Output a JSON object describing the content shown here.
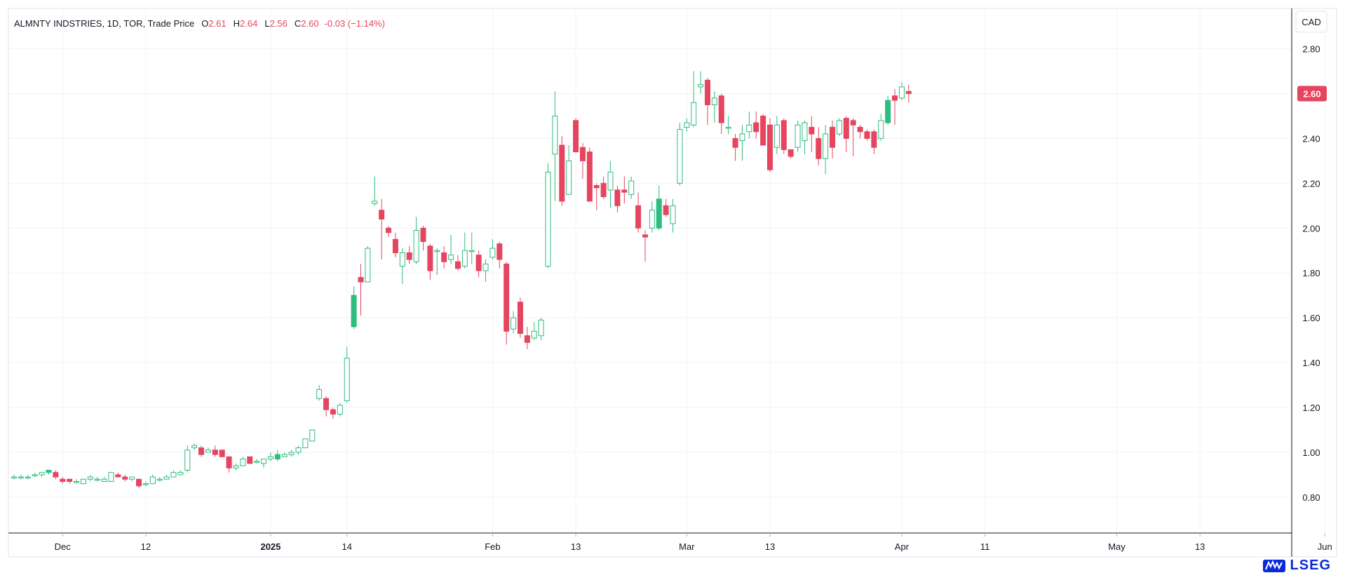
{
  "header": {
    "symbol": "ALMNTY INDSTRIES, 1D, TOR, Trade Price",
    "o_label": "O",
    "o_value": "2.61",
    "h_label": "H",
    "h_value": "2.64",
    "l_label": "L",
    "l_value": "2.56",
    "c_label": "C",
    "c_value": "2.60",
    "change": "-0.03 (−1.14%)"
  },
  "currency": "CAD",
  "last_price_label": "2.60",
  "logo_text": "LSEG",
  "colors": {
    "up": "#26a69a",
    "up_fill": "#2dbd7e",
    "down": "#e5455f",
    "grid": "#f0f3fa",
    "axis_text": "#131722",
    "header_red": "#e5455f"
  },
  "chart_data": {
    "type": "candlestick",
    "y_ticks": [
      "0.80",
      "1.00",
      "1.20",
      "1.40",
      "1.60",
      "1.80",
      "2.00",
      "2.20",
      "2.40",
      "2.60",
      "2.80"
    ],
    "ylim": [
      0.64,
      2.98
    ],
    "x_ticks": [
      {
        "i": 7,
        "label": "Dec",
        "bold": false
      },
      {
        "i": 19,
        "label": "12",
        "bold": false
      },
      {
        "i": 37,
        "label": "2025",
        "bold": true
      },
      {
        "i": 48,
        "label": "14",
        "bold": false
      },
      {
        "i": 69,
        "label": "Feb",
        "bold": false
      },
      {
        "i": 81,
        "label": "13",
        "bold": false
      },
      {
        "i": 97,
        "label": "Mar",
        "bold": false
      },
      {
        "i": 109,
        "label": "13",
        "bold": false
      },
      {
        "i": 128,
        "label": "Apr",
        "bold": false
      },
      {
        "i": 140,
        "label": "11",
        "bold": false
      },
      {
        "i": 159,
        "label": "May",
        "bold": false
      },
      {
        "i": 171,
        "label": "13",
        "bold": false
      },
      {
        "i": 189,
        "label": "Jun",
        "bold": false
      }
    ],
    "candles": [
      [
        0.89,
        0.9,
        0.88,
        0.89
      ],
      [
        0.89,
        0.9,
        0.88,
        0.89
      ],
      [
        0.89,
        0.9,
        0.88,
        0.89
      ],
      [
        0.9,
        0.91,
        0.89,
        0.9
      ],
      [
        0.9,
        0.91,
        0.89,
        0.91
      ],
      [
        0.91,
        0.92,
        0.9,
        0.92
      ],
      [
        0.91,
        0.92,
        0.88,
        0.89
      ],
      [
        0.88,
        0.89,
        0.86,
        0.87
      ],
      [
        0.88,
        0.88,
        0.86,
        0.87
      ],
      [
        0.87,
        0.88,
        0.86,
        0.87
      ],
      [
        0.86,
        0.88,
        0.86,
        0.88
      ],
      [
        0.88,
        0.9,
        0.87,
        0.89
      ],
      [
        0.88,
        0.89,
        0.87,
        0.88
      ],
      [
        0.87,
        0.89,
        0.87,
        0.88
      ],
      [
        0.87,
        0.91,
        0.87,
        0.91
      ],
      [
        0.9,
        0.91,
        0.89,
        0.89
      ],
      [
        0.89,
        0.9,
        0.87,
        0.88
      ],
      [
        0.88,
        0.89,
        0.87,
        0.89
      ],
      [
        0.88,
        0.88,
        0.84,
        0.85
      ],
      [
        0.86,
        0.87,
        0.85,
        0.86
      ],
      [
        0.86,
        0.9,
        0.86,
        0.89
      ],
      [
        0.88,
        0.89,
        0.87,
        0.88
      ],
      [
        0.88,
        0.9,
        0.88,
        0.89
      ],
      [
        0.89,
        0.92,
        0.89,
        0.91
      ],
      [
        0.9,
        0.92,
        0.9,
        0.91
      ],
      [
        0.92,
        1.03,
        0.91,
        1.01
      ],
      [
        1.02,
        1.04,
        1.01,
        1.03
      ],
      [
        1.02,
        1.03,
        0.98,
        0.99
      ],
      [
        1.0,
        1.02,
        1.0,
        1.01
      ],
      [
        1.01,
        1.03,
        0.98,
        0.99
      ],
      [
        1.01,
        1.01,
        0.98,
        0.98
      ],
      [
        0.98,
        0.98,
        0.91,
        0.93
      ],
      [
        0.93,
        0.95,
        0.92,
        0.94
      ],
      [
        0.94,
        0.98,
        0.94,
        0.97
      ],
      [
        0.98,
        0.98,
        0.95,
        0.95
      ],
      [
        0.96,
        0.97,
        0.95,
        0.96
      ],
      [
        0.95,
        0.97,
        0.93,
        0.97
      ],
      [
        0.97,
        1.0,
        0.96,
        0.98
      ],
      [
        0.97,
        1.01,
        0.96,
        0.99
      ],
      [
        0.98,
        1.0,
        0.98,
        0.99
      ],
      [
        0.99,
        1.01,
        0.98,
        1.0
      ],
      [
        1.0,
        1.03,
        0.99,
        1.02
      ],
      [
        1.02,
        1.06,
        1.02,
        1.06
      ],
      [
        1.05,
        1.1,
        1.05,
        1.1
      ],
      [
        1.24,
        1.3,
        1.23,
        1.28
      ],
      [
        1.24,
        1.25,
        1.16,
        1.19
      ],
      [
        1.19,
        1.2,
        1.15,
        1.17
      ],
      [
        1.17,
        1.22,
        1.16,
        1.21
      ],
      [
        1.23,
        1.47,
        1.22,
        1.42
      ],
      [
        1.56,
        1.74,
        1.55,
        1.7
      ],
      [
        1.78,
        1.84,
        1.61,
        1.76
      ],
      [
        1.76,
        1.92,
        1.76,
        1.91
      ],
      [
        2.11,
        2.23,
        2.1,
        2.12
      ],
      [
        2.08,
        2.13,
        1.86,
        2.04
      ],
      [
        2.0,
        2.01,
        1.96,
        1.98
      ],
      [
        1.95,
        1.98,
        1.87,
        1.89
      ],
      [
        1.83,
        1.91,
        1.75,
        1.89
      ],
      [
        1.89,
        1.92,
        1.84,
        1.86
      ],
      [
        1.85,
        2.05,
        1.84,
        1.99
      ],
      [
        2.0,
        2.01,
        1.9,
        1.94
      ],
      [
        1.92,
        1.93,
        1.77,
        1.81
      ],
      [
        1.9,
        1.91,
        1.79,
        1.9
      ],
      [
        1.89,
        1.92,
        1.82,
        1.85
      ],
      [
        1.86,
        1.97,
        1.84,
        1.88
      ],
      [
        1.85,
        1.88,
        1.81,
        1.82
      ],
      [
        1.83,
        1.98,
        1.82,
        1.9
      ],
      [
        1.9,
        1.98,
        1.84,
        1.9
      ],
      [
        1.88,
        1.9,
        1.78,
        1.81
      ],
      [
        1.81,
        1.86,
        1.76,
        1.84
      ],
      [
        1.87,
        1.95,
        1.86,
        1.91
      ],
      [
        1.93,
        1.94,
        1.82,
        1.86
      ],
      [
        1.84,
        1.85,
        1.48,
        1.54
      ],
      [
        1.55,
        1.63,
        1.53,
        1.6
      ],
      [
        1.67,
        1.69,
        1.51,
        1.53
      ],
      [
        1.52,
        1.56,
        1.46,
        1.49
      ],
      [
        1.51,
        1.58,
        1.5,
        1.54
      ],
      [
        1.52,
        1.6,
        1.5,
        1.59
      ],
      [
        1.83,
        2.29,
        1.82,
        2.25
      ],
      [
        2.33,
        2.61,
        2.12,
        2.5
      ],
      [
        2.37,
        2.41,
        2.1,
        2.12
      ],
      [
        2.15,
        2.37,
        2.15,
        2.3
      ],
      [
        2.48,
        2.49,
        2.34,
        2.34
      ],
      [
        2.36,
        2.38,
        2.22,
        2.3
      ],
      [
        2.34,
        2.36,
        2.12,
        2.12
      ],
      [
        2.19,
        2.2,
        2.08,
        2.18
      ],
      [
        2.2,
        2.23,
        2.13,
        2.14
      ],
      [
        2.17,
        2.3,
        2.09,
        2.25
      ],
      [
        2.17,
        2.19,
        2.07,
        2.1
      ],
      [
        2.17,
        2.23,
        2.11,
        2.16
      ],
      [
        2.15,
        2.23,
        2.13,
        2.21
      ],
      [
        2.1,
        2.16,
        1.98,
        2.0
      ],
      [
        1.97,
        1.99,
        1.85,
        1.96
      ],
      [
        2.0,
        2.12,
        1.98,
        2.08
      ],
      [
        2.0,
        2.19,
        1.99,
        2.13
      ],
      [
        2.1,
        2.13,
        2.05,
        2.06
      ],
      [
        2.02,
        2.13,
        1.98,
        2.1
      ],
      [
        2.2,
        2.47,
        2.19,
        2.44
      ],
      [
        2.45,
        2.49,
        2.43,
        2.47
      ],
      [
        2.46,
        2.7,
        2.45,
        2.56
      ],
      [
        2.63,
        2.7,
        2.6,
        2.64
      ],
      [
        2.66,
        2.67,
        2.46,
        2.55
      ],
      [
        2.55,
        2.61,
        2.47,
        2.58
      ],
      [
        2.59,
        2.6,
        2.42,
        2.47
      ],
      [
        2.45,
        2.5,
        2.42,
        2.45
      ],
      [
        2.4,
        2.42,
        2.3,
        2.36
      ],
      [
        2.39,
        2.46,
        2.3,
        2.42
      ],
      [
        2.43,
        2.52,
        2.4,
        2.46
      ],
      [
        2.47,
        2.52,
        2.4,
        2.43
      ],
      [
        2.5,
        2.51,
        2.38,
        2.37
      ],
      [
        2.46,
        2.49,
        2.25,
        2.26
      ],
      [
        2.36,
        2.5,
        2.33,
        2.46
      ],
      [
        2.48,
        2.49,
        2.33,
        2.35
      ],
      [
        2.35,
        2.35,
        2.31,
        2.32
      ],
      [
        2.36,
        2.48,
        2.34,
        2.46
      ],
      [
        2.39,
        2.48,
        2.33,
        2.47
      ],
      [
        2.45,
        2.5,
        2.34,
        2.42
      ],
      [
        2.4,
        2.45,
        2.28,
        2.31
      ],
      [
        2.31,
        2.46,
        2.24,
        2.42
      ],
      [
        2.45,
        2.48,
        2.31,
        2.36
      ],
      [
        2.42,
        2.49,
        2.41,
        2.48
      ],
      [
        2.49,
        2.5,
        2.34,
        2.4
      ],
      [
        2.48,
        2.49,
        2.32,
        2.46
      ],
      [
        2.45,
        2.46,
        2.4,
        2.43
      ],
      [
        2.43,
        2.44,
        2.39,
        2.4
      ],
      [
        2.43,
        2.44,
        2.33,
        2.36
      ],
      [
        2.4,
        2.51,
        2.39,
        2.48
      ],
      [
        2.47,
        2.59,
        2.46,
        2.57
      ],
      [
        2.59,
        2.62,
        2.46,
        2.57
      ],
      [
        2.58,
        2.65,
        2.57,
        2.63
      ],
      [
        2.61,
        2.64,
        2.56,
        2.6
      ]
    ]
  }
}
